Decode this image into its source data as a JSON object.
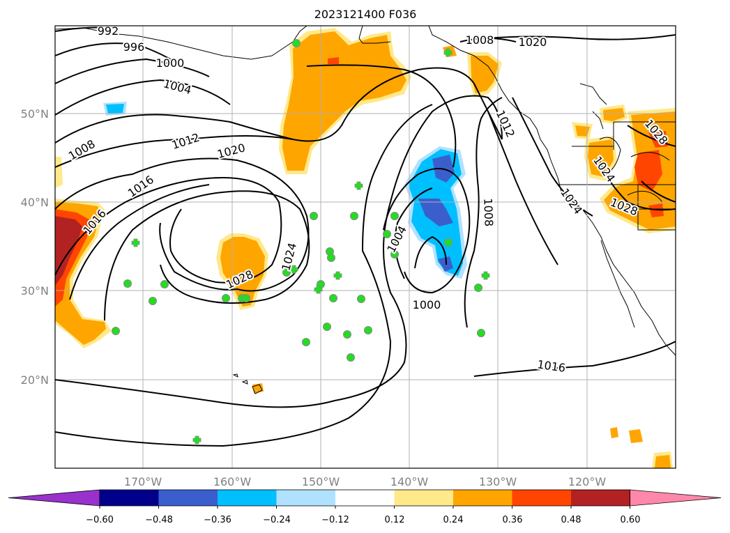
{
  "title": "2023121400 F036",
  "map": {
    "lat_labels": [
      "50°N",
      "40°N",
      "30°N",
      "20°N"
    ],
    "lon_labels": [
      "170°W",
      "160°W",
      "150°W",
      "140°W",
      "130°W",
      "120°W"
    ],
    "gridlines": true,
    "isobar_labels": [
      "992",
      "996",
      "1000",
      "1004",
      "1008",
      "1012",
      "1016",
      "1020",
      "1024",
      "1028",
      "1008",
      "1020",
      "1012",
      "1008",
      "1004",
      "1000",
      "1016",
      "1024",
      "1028",
      "1028",
      "1024",
      "1016",
      "1012",
      "1008",
      "1020",
      "1024",
      "1028"
    ],
    "observation_markers": {
      "circle": "green circle",
      "cross": "green plus"
    }
  },
  "colorbar": {
    "ticks": [
      "−0.60",
      "−0.48",
      "−0.36",
      "−0.24",
      "−0.12",
      "0.12",
      "0.24",
      "0.36",
      "0.48",
      "0.60"
    ],
    "colors": [
      "#9932cc",
      "#00008b",
      "#3a5fcd",
      "#00bfff",
      "#b0e2ff",
      "#ffffff",
      "#ffe98a",
      "#ffa500",
      "#ff4500",
      "#b22222",
      "#ff88aa"
    ],
    "extend": "both"
  }
}
